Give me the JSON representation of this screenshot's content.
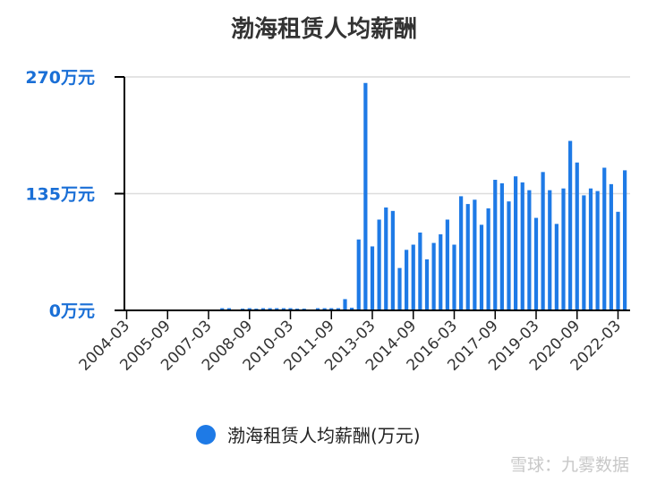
{
  "watermark": "雪球：九雾数据",
  "colors": {
    "bar": "#1e7ae6",
    "axis_label": "#1a6fd6",
    "grid": "#dcdcdc",
    "axis": "#000000"
  },
  "chart_data": {
    "type": "bar",
    "title": "渤海租赁人均薪酬",
    "xlabel": "",
    "ylabel": "",
    "ylim": [
      0,
      270
    ],
    "yticks": [
      {
        "value": 0,
        "label": "0万元"
      },
      {
        "value": 135,
        "label": "135万元"
      },
      {
        "value": 270,
        "label": "270万元"
      }
    ],
    "grid": true,
    "legend_position": "bottom",
    "x_tick_labels": [
      "2004-03",
      "2005-09",
      "2007-03",
      "2008-09",
      "2010-03",
      "2011-09",
      "2013-03",
      "2014-09",
      "2016-03",
      "2017-09",
      "2019-03",
      "2020-09",
      "2022-03"
    ],
    "categories": [
      "2004-03",
      "2004-06",
      "2004-09",
      "2004-12",
      "2005-03",
      "2005-06",
      "2005-09",
      "2005-12",
      "2006-03",
      "2006-06",
      "2006-09",
      "2006-12",
      "2007-03",
      "2007-06",
      "2007-09",
      "2007-12",
      "2008-03",
      "2008-06",
      "2008-09",
      "2008-12",
      "2009-03",
      "2009-06",
      "2009-09",
      "2009-12",
      "2010-03",
      "2010-06",
      "2010-09",
      "2010-12",
      "2011-03",
      "2011-06",
      "2011-09",
      "2011-12",
      "2012-03",
      "2012-06",
      "2012-09",
      "2012-12",
      "2013-03",
      "2013-06",
      "2013-09",
      "2013-12",
      "2014-03",
      "2014-06",
      "2014-09",
      "2014-12",
      "2015-03",
      "2015-06",
      "2015-09",
      "2015-12",
      "2016-03",
      "2016-06",
      "2016-09",
      "2016-12",
      "2017-03",
      "2017-06",
      "2017-09",
      "2017-12",
      "2018-03",
      "2018-06",
      "2018-09",
      "2018-12",
      "2019-03",
      "2019-06",
      "2019-09",
      "2019-12",
      "2020-03",
      "2020-06",
      "2020-09",
      "2020-12",
      "2021-03",
      "2021-06",
      "2021-09",
      "2021-12",
      "2022-03",
      "2022-06",
      "2022-09"
    ],
    "series": [
      {
        "name": "渤海租赁人均薪酬(万元)",
        "values": [
          0,
          0,
          0,
          0,
          0,
          0,
          0,
          0,
          0,
          0,
          0,
          0,
          0,
          0,
          2.5,
          2.5,
          0,
          2,
          2.5,
          2,
          2.5,
          2.5,
          2.5,
          2.5,
          2.5,
          2,
          2,
          0,
          2.5,
          2.5,
          2.5,
          2.5,
          13,
          3,
          82,
          263,
          74,
          105,
          119,
          115,
          49,
          70,
          76,
          90,
          59,
          78,
          88,
          105,
          76,
          132,
          123,
          128,
          99,
          118,
          151,
          147,
          126,
          155,
          148,
          139,
          107,
          160,
          139,
          100,
          141,
          196,
          171,
          133,
          141,
          138,
          165,
          146,
          114,
          162,
          0
        ]
      }
    ]
  }
}
